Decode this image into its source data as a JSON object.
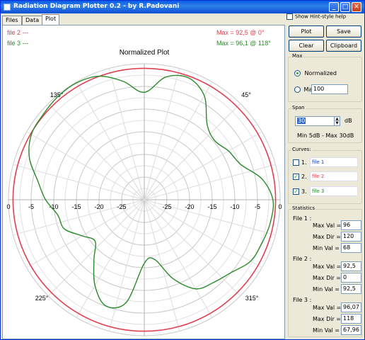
{
  "window": {
    "title": "Radiation Diagram Plotter 0.2 - by R.Padovani",
    "controls": {
      "minimize": "_",
      "maximize": "□",
      "close": "✕"
    }
  },
  "tabs": [
    {
      "label": "Files",
      "active": false
    },
    {
      "label": "Data",
      "active": false
    },
    {
      "label": "Plot",
      "active": true
    }
  ],
  "plot": {
    "title": "Normalized Plot",
    "legend": [
      {
        "label": "file 2  ---",
        "color": "#e04050"
      },
      {
        "label": "file 3  ---",
        "color": "#2b8a2b"
      }
    ],
    "max_readouts": [
      {
        "text": "Max = 92,5 @ 0°",
        "color": "#e04050"
      },
      {
        "text": "Max = 96,1 @ 118°",
        "color": "#2b8a2b"
      }
    ],
    "angle_labels": [
      "45°",
      "135°",
      "225°",
      "315°"
    ],
    "left_axis_ticks": [
      "0",
      "-5",
      "-10",
      "-15",
      "-20",
      "-25"
    ],
    "right_axis_ticks": [
      "-25",
      "-20",
      "-15",
      "-10",
      "-5",
      "0"
    ]
  },
  "chart_data": {
    "type": "polar",
    "title": "Normalized Plot",
    "r_unit": "dB",
    "r_range": [
      -30,
      0
    ],
    "r_ticks": [
      0,
      -5,
      -10,
      -15,
      -20,
      -25
    ],
    "angle_ticks": [
      45,
      135,
      225,
      315
    ],
    "series": [
      {
        "name": "file 2",
        "color": "#e04050",
        "max_value": 92.5,
        "max_dir": 0,
        "theta": [
          0,
          45,
          90,
          135,
          180,
          225,
          270,
          315
        ],
        "r": [
          -1,
          -1,
          -1,
          -1,
          -1,
          -1,
          -1,
          -1
        ]
      },
      {
        "name": "file 3",
        "color": "#2b8a2b",
        "max_value": 96.1,
        "max_dir": 118,
        "theta": [
          0,
          10,
          20,
          30,
          40,
          50,
          60,
          70,
          80,
          90,
          100,
          110,
          120,
          130,
          140,
          150,
          160,
          170,
          180,
          190,
          200,
          210,
          220,
          230,
          240,
          250,
          260,
          270,
          280,
          290,
          300,
          310,
          320,
          330,
          340,
          350
        ],
        "r": [
          -1.6,
          -3.6,
          -7.3,
          -8.5,
          -9.7,
          -8.4,
          -3.5,
          -1.4,
          -2.5,
          -6.3,
          -3.5,
          -1.0,
          -0.2,
          -0.3,
          -0.8,
          -1.2,
          -3.0,
          -6.1,
          -8.2,
          -10.6,
          -11.2,
          -14.1,
          -15.8,
          -12.7,
          -8.2,
          -5.1,
          -7.0,
          -16.0,
          -16.6,
          -11.5,
          -7.3,
          -6.2,
          -5.0,
          -2.9,
          -2.3,
          -1.7
        ]
      }
    ]
  },
  "side": {
    "hint_label": "Show Hint-style help",
    "buttons": {
      "plot": "Plot",
      "save": "Save",
      "clear": "Clear",
      "clipboard": "Clipboard"
    },
    "max_group": {
      "legend": "Max",
      "normalized": "Normalized",
      "max_label": "Max",
      "max_value": "100"
    },
    "span_group": {
      "legend": "Span",
      "value": "30",
      "unit": "dB",
      "range_text": "Min 5dB  -  Max 30dB"
    },
    "curves_group": {
      "legend": "Curves:",
      "items": [
        {
          "num": "1.",
          "name": "file 1",
          "checked": false,
          "color": "#1a3fbf"
        },
        {
          "num": "2.",
          "name": "file 2",
          "checked": true,
          "color": "#e04050"
        },
        {
          "num": "3.",
          "name": "file 3",
          "checked": true,
          "color": "#2b8a2b"
        }
      ]
    },
    "stats_group": {
      "legend": "Statistics",
      "files": [
        {
          "label": "File 1 :",
          "max_val": "96",
          "max_dir": "120",
          "min_val": "68"
        },
        {
          "label": "File 2 :",
          "max_val": "92,5",
          "max_dir": "0",
          "min_val": "92,5"
        },
        {
          "label": "File 3 :",
          "max_val": "96,07",
          "max_dir": "118",
          "min_val": "67,96"
        }
      ],
      "row_labels": {
        "max_val": "Max Val =",
        "max_dir": "Max Dir =",
        "min_val": "Min Val ="
      }
    }
  }
}
